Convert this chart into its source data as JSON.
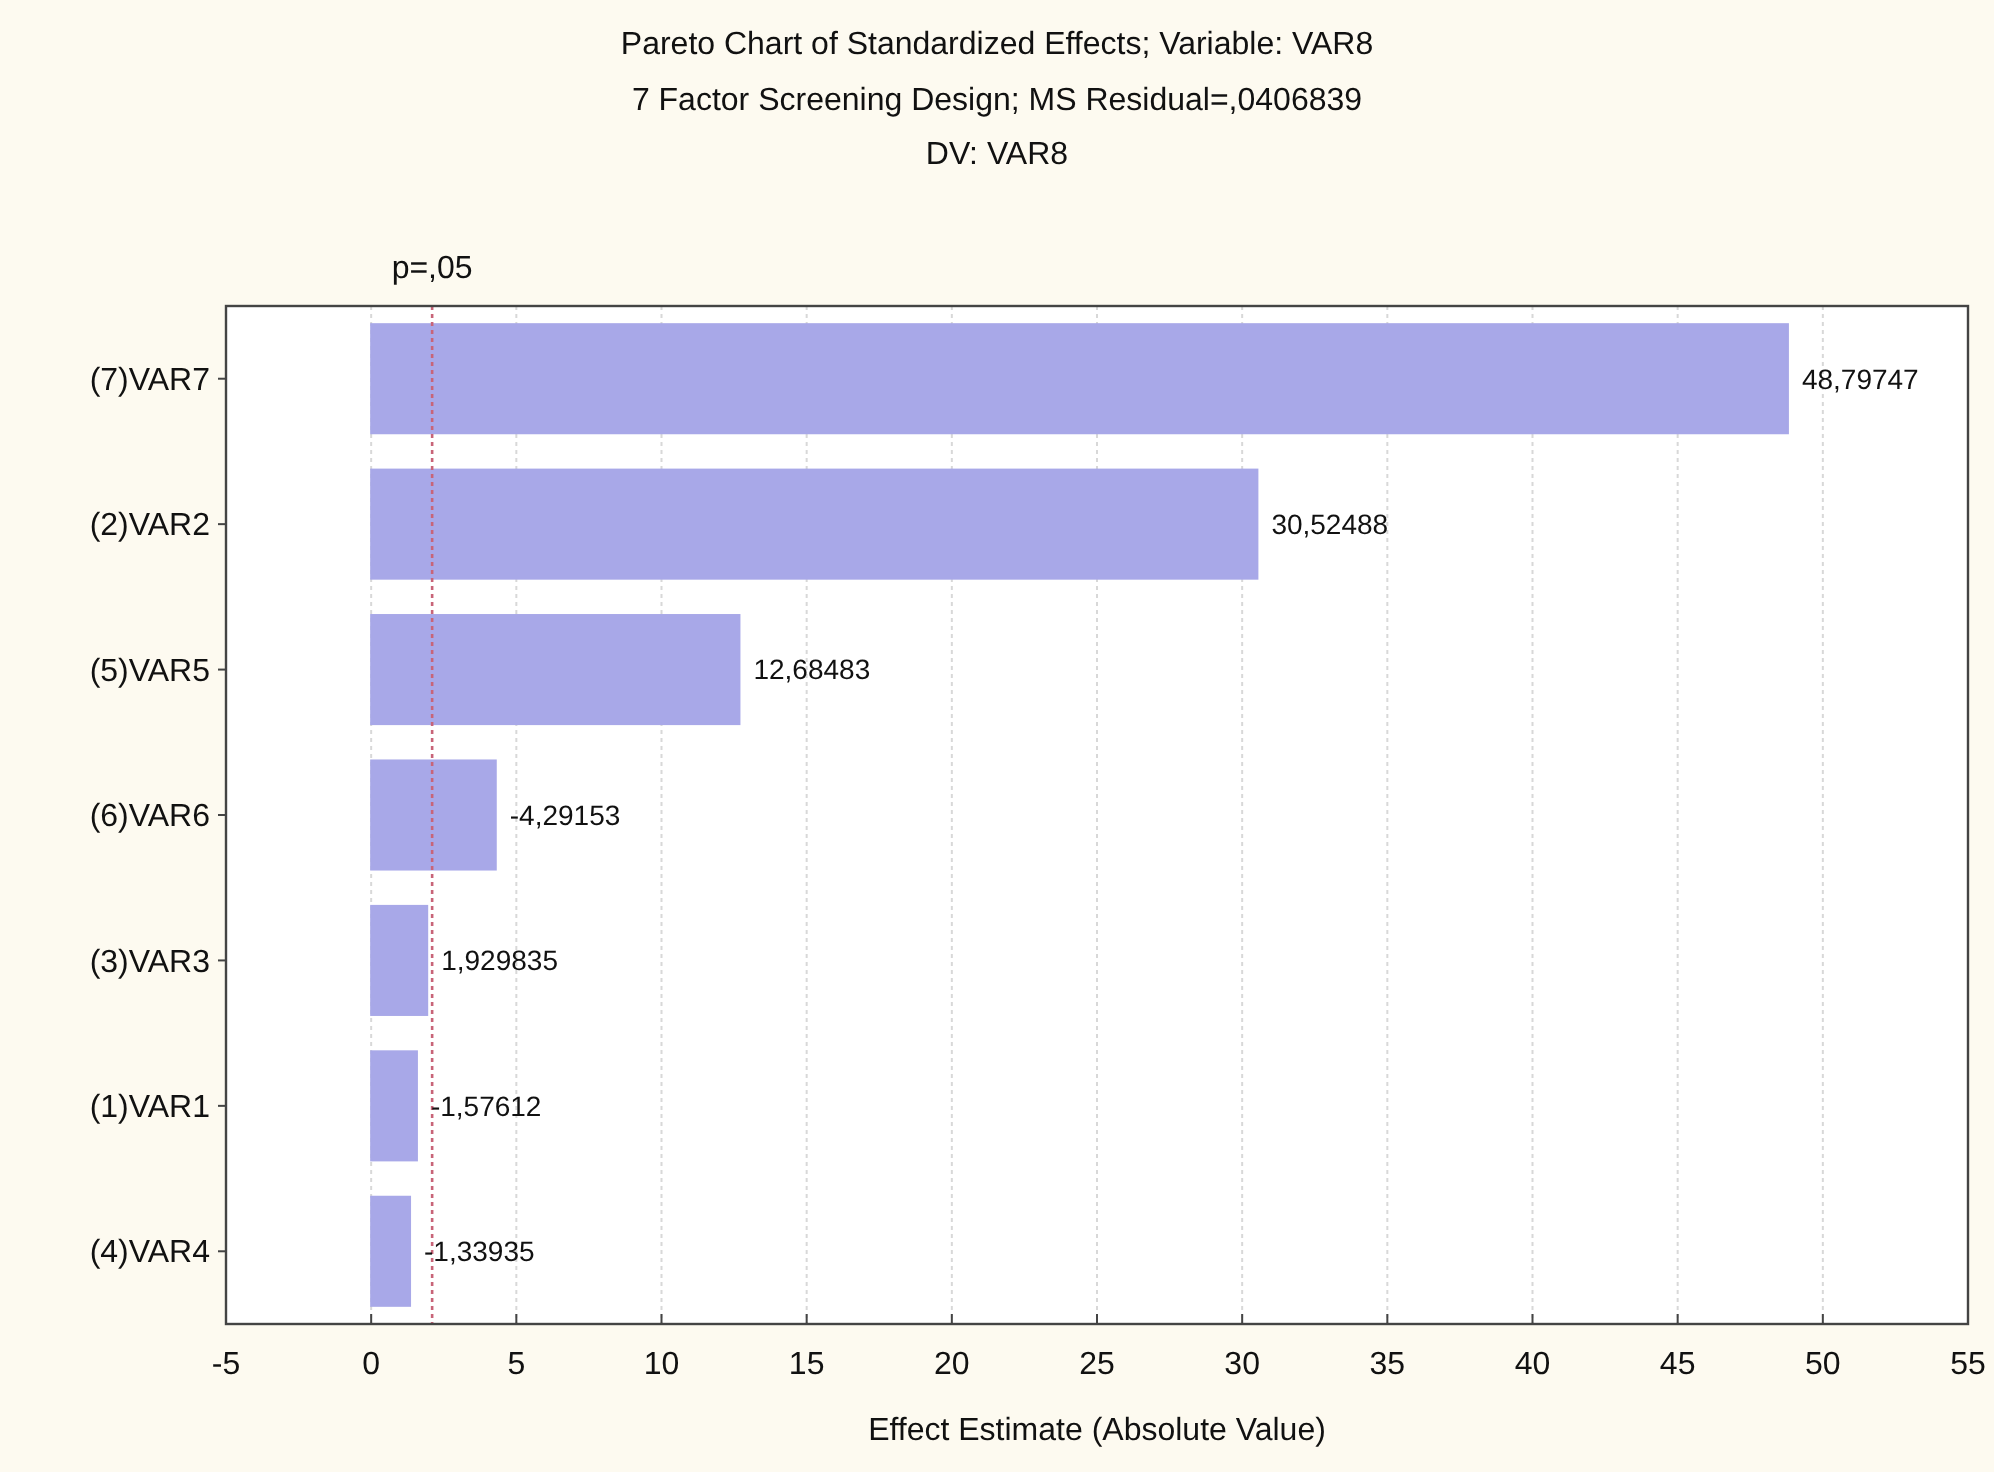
{
  "chart_data": {
    "type": "bar",
    "orientation": "horizontal",
    "title": "Pareto Chart of Standardized Effects; Variable: VAR8",
    "subtitle": "7 Factor Screening Design; MS Residual=,0406839\nDV: VAR8",
    "xlabel": "Effect Estimate (Absolute Value)",
    "categories": [
      "(7)VAR7",
      "(2)VAR2",
      "(5)VAR5",
      "(6)VAR6",
      "(3)VAR3",
      "(1)VAR1",
      "(4)VAR4"
    ],
    "values": [
      48.79747,
      30.52488,
      12.68483,
      4.29153,
      1.929835,
      1.57612,
      1.33935
    ],
    "value_labels": [
      "48,79747",
      "30,52488",
      "12,68483",
      "-4,29153",
      "1,929835",
      "-1,57612",
      "-1,33935"
    ],
    "color": "#a8a8e8",
    "xlim": [
      -5,
      55
    ],
    "xticks": [
      -5,
      0,
      5,
      10,
      15,
      20,
      25,
      30,
      35,
      40,
      45,
      50,
      55
    ],
    "grid": "x",
    "ref_lines": [
      {
        "axis": "x",
        "value": 2.1,
        "label": "p=,05",
        "color": "#c86478",
        "line_style": "dotted"
      }
    ]
  }
}
